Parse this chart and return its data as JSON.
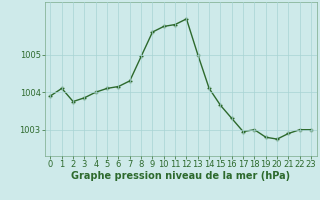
{
  "x": [
    0,
    1,
    2,
    3,
    4,
    5,
    6,
    7,
    8,
    9,
    10,
    11,
    12,
    13,
    14,
    15,
    16,
    17,
    18,
    19,
    20,
    21,
    22,
    23
  ],
  "y": [
    1003.9,
    1004.1,
    1003.75,
    1003.85,
    1004.0,
    1004.1,
    1004.15,
    1004.3,
    1004.95,
    1005.6,
    1005.75,
    1005.8,
    1005.95,
    1005.0,
    1004.1,
    1003.65,
    1003.3,
    1002.95,
    1003.0,
    1002.8,
    1002.75,
    1002.9,
    1003.0,
    1003.0
  ],
  "line_color": "#2d6a2d",
  "marker": "+",
  "marker_size": 3,
  "linewidth": 1.0,
  "background_color": "#ceeaea",
  "grid_color": "#a8d4d4",
  "ylabel_ticks": [
    1003,
    1004,
    1005
  ],
  "xlabel": "Graphe pression niveau de la mer (hPa)",
  "xlabel_fontsize": 7,
  "tick_fontsize": 6,
  "ylim": [
    1002.3,
    1006.4
  ],
  "xlim": [
    -0.5,
    23.5
  ],
  "title": ""
}
